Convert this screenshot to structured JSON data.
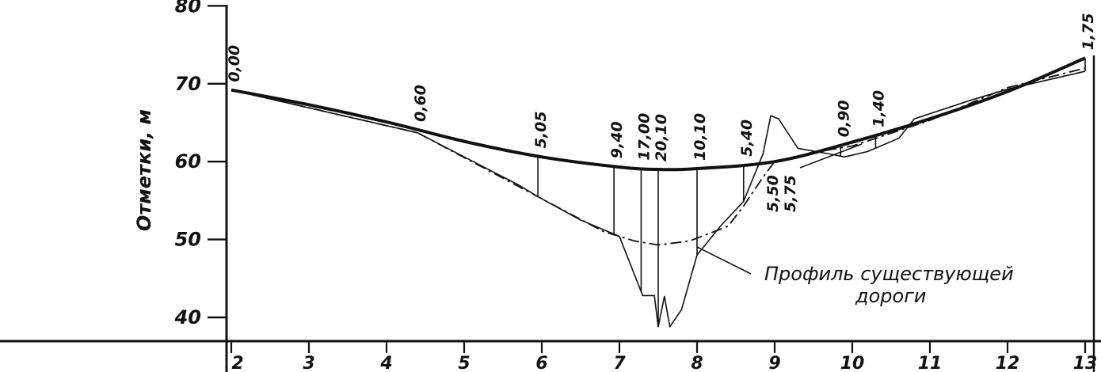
{
  "chart_data": {
    "type": "line",
    "ylabel": "Отметки, м",
    "xlabel": "",
    "title": "",
    "ylim": [
      38,
      80
    ],
    "xlim": [
      2,
      13
    ],
    "y_ticks": [
      "40",
      "50",
      "60",
      "70",
      "80"
    ],
    "x_ticks": [
      "2",
      "3",
      "4",
      "5",
      "6",
      "7",
      "8",
      "9",
      "10",
      "11",
      "12",
      "13"
    ],
    "grid": false,
    "design_profile": {
      "name": "",
      "points": [
        [
          2,
          69.2
        ],
        [
          3,
          67.3
        ],
        [
          4,
          65.1
        ],
        [
          5,
          62.6
        ],
        [
          6,
          60.6
        ],
        [
          7,
          59.3
        ],
        [
          7.5,
          59.0
        ],
        [
          8,
          59.1
        ],
        [
          9,
          60.0
        ],
        [
          10,
          62.5
        ],
        [
          11,
          65.5
        ],
        [
          12,
          69.0
        ],
        [
          13,
          73.3
        ]
      ]
    },
    "existing_road": {
      "points": [
        [
          2,
          69.2
        ],
        [
          4.4,
          63.7
        ],
        [
          6.8,
          51.0
        ],
        [
          7.2,
          49.8
        ],
        [
          7.5,
          49.3
        ],
        [
          7.9,
          49.8
        ],
        [
          8.4,
          51.7
        ],
        [
          8.6,
          54.3
        ],
        [
          8.85,
          58.0
        ],
        [
          9.0,
          60.0
        ],
        [
          9.5,
          61.2
        ],
        [
          10,
          62.0
        ],
        [
          11,
          65.3
        ],
        [
          12,
          69.5
        ],
        [
          13,
          72.0
        ]
      ]
    },
    "ground_profile": {
      "points": [
        [
          2,
          69.2
        ],
        [
          4.4,
          63.7
        ],
        [
          5.7,
          57.0
        ],
        [
          5.95,
          55.5
        ],
        [
          6.5,
          52.5
        ],
        [
          7.0,
          50.4
        ],
        [
          7.3,
          42.8
        ],
        [
          7.45,
          42.8
        ],
        [
          7.5,
          38.8
        ],
        [
          7.58,
          42.7
        ],
        [
          7.65,
          38.8
        ],
        [
          7.8,
          41.0
        ],
        [
          8.0,
          48.0
        ],
        [
          8.3,
          51.7
        ],
        [
          8.6,
          54.9
        ],
        [
          8.85,
          61.0
        ],
        [
          8.95,
          65.9
        ],
        [
          9.05,
          65.5
        ],
        [
          9.3,
          61.7
        ],
        [
          9.7,
          61.0
        ],
        [
          9.9,
          60.6
        ],
        [
          10.2,
          61.3
        ],
        [
          10.6,
          63.0
        ],
        [
          10.8,
          65.5
        ],
        [
          11.5,
          67.8
        ],
        [
          12.0,
          69.3
        ],
        [
          13,
          71.6
        ]
      ]
    },
    "annotations": [
      {
        "text": "0,00",
        "x": 2.0
      },
      {
        "text": "0,60",
        "x": 4.4
      },
      {
        "text": "5,05",
        "x": 5.95
      },
      {
        "text": "9,40",
        "x": 6.93
      },
      {
        "text": "17,00",
        "x": 7.28
      },
      {
        "text": "20,10",
        "x": 7.5
      },
      {
        "text": "10,10",
        "x": 8.0
      },
      {
        "text": "5,40",
        "x": 8.6
      },
      {
        "text": "0,90",
        "x": 9.85
      },
      {
        "text": "1,40",
        "x": 10.3
      },
      {
        "text": "1,75",
        "x": 13.0
      }
    ],
    "side_labels": [
      "5,50",
      "5,75"
    ],
    "callout": {
      "line1": "Профиль существующей",
      "line2": "дороги"
    }
  }
}
